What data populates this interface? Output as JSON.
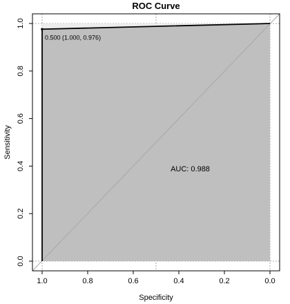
{
  "chart_data": {
    "type": "line",
    "title": "ROC Curve",
    "xlabel": "Specificity",
    "ylabel": "Sensitivity",
    "x_reversed": true,
    "xlim": [
      1.0,
      0.0
    ],
    "ylim": [
      0.0,
      1.0
    ],
    "x_ticks": [
      1.0,
      0.8,
      0.6,
      0.4,
      0.2,
      0.0
    ],
    "x_tick_labels": [
      "1.0",
      "0.8",
      "0.6",
      "0.4",
      "0.2",
      "0.0"
    ],
    "y_ticks": [
      0.0,
      0.2,
      0.4,
      0.6,
      0.8,
      1.0
    ],
    "y_tick_labels": [
      "0.0",
      "0.2",
      "0.4",
      "0.6",
      "0.8",
      "1.0"
    ],
    "grid_lines_x": [
      1.0,
      0.5,
      0.0
    ],
    "grid_lines_y": [
      0.0,
      1.0
    ],
    "series": [
      {
        "specificity": [
          1.0,
          1.0,
          0.0
        ],
        "sensitivity": [
          0.0,
          0.976,
          1.0
        ]
      }
    ],
    "threshold_point": {
      "specificity": 1.0,
      "sensitivity": 0.976,
      "label": "0.500 (1.000, 0.976)"
    },
    "auc_label": "AUC: 0.988",
    "auc_anchor": {
      "specificity": 0.35,
      "sensitivity": 0.39
    },
    "colors": {
      "curve": "#000000",
      "fill": "#bfbfbf",
      "diagonal": "#a8a8a8",
      "grid": "#8c8c8c"
    }
  }
}
